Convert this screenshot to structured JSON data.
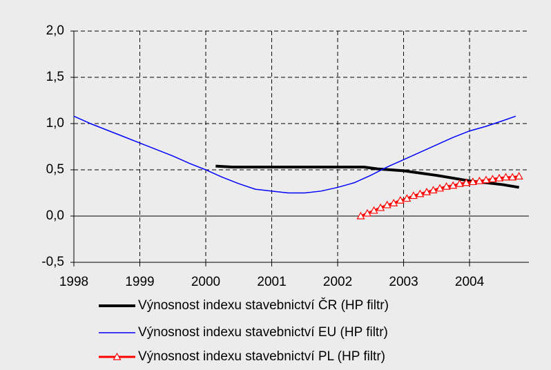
{
  "chart_data": {
    "type": "line",
    "xlim": [
      1998,
      2004.9
    ],
    "xticks": [
      1998,
      1999,
      2000,
      2001,
      2002,
      2003,
      2004
    ],
    "ylim": [
      -0.5,
      2.0
    ],
    "yticks": [
      {
        "value": -0.5,
        "label": "-0,5"
      },
      {
        "value": 0,
        "label": "0,0"
      },
      {
        "value": 0.5,
        "label": "0,5"
      },
      {
        "value": 1.0,
        "label": "1,0"
      },
      {
        "value": 1.5,
        "label": "1,5"
      },
      {
        "value": 2.0,
        "label": "2,0"
      }
    ],
    "grid": true,
    "legend": "bottom",
    "series": [
      {
        "name": "Výnosnost indexu stavebnictví ČR (HP filtr)",
        "color": "#000000",
        "x": [
          2000.15,
          2000.4,
          2001.0,
          2001.5,
          2002.0,
          2002.4,
          2002.6,
          2003.0,
          2003.5,
          2004.0,
          2004.5,
          2004.75
        ],
        "values": [
          0.54,
          0.53,
          0.53,
          0.53,
          0.53,
          0.53,
          0.51,
          0.49,
          0.44,
          0.38,
          0.34,
          0.31
        ]
      },
      {
        "name": "Výnosnost indexu stavebnictví EU (HP filtr)",
        "color": "#0000ff",
        "x": [
          1998.0,
          1998.25,
          1998.5,
          1998.75,
          1999.0,
          1999.25,
          1999.5,
          1999.75,
          2000.0,
          2000.25,
          2000.5,
          2000.75,
          2001.0,
          2001.25,
          2001.5,
          2001.75,
          2002.0,
          2002.25,
          2002.5,
          2002.75,
          2003.0,
          2003.25,
          2003.5,
          2003.75,
          2004.0,
          2004.25,
          2004.5,
          2004.7
        ],
        "values": [
          1.08,
          1.0,
          0.93,
          0.86,
          0.79,
          0.72,
          0.65,
          0.57,
          0.5,
          0.42,
          0.35,
          0.29,
          0.27,
          0.25,
          0.25,
          0.27,
          0.31,
          0.36,
          0.44,
          0.53,
          0.61,
          0.69,
          0.77,
          0.85,
          0.92,
          0.97,
          1.03,
          1.08
        ]
      },
      {
        "name": "Výnosnost indexu stavebnictví PL (HP filtr)",
        "color": "#ff0000",
        "x": [
          2002.35,
          2002.45,
          2002.55,
          2002.65,
          2002.75,
          2002.85,
          2002.95,
          2003.05,
          2003.15,
          2003.25,
          2003.35,
          2003.45,
          2003.55,
          2003.65,
          2003.75,
          2003.85,
          2003.95,
          2004.05,
          2004.15,
          2004.25,
          2004.35,
          2004.45,
          2004.55,
          2004.65,
          2004.75
        ],
        "values": [
          0.0,
          0.03,
          0.06,
          0.09,
          0.12,
          0.14,
          0.17,
          0.19,
          0.22,
          0.24,
          0.26,
          0.28,
          0.3,
          0.32,
          0.33,
          0.35,
          0.36,
          0.37,
          0.38,
          0.39,
          0.4,
          0.41,
          0.42,
          0.42,
          0.43
        ],
        "marker": "triangle"
      }
    ]
  }
}
